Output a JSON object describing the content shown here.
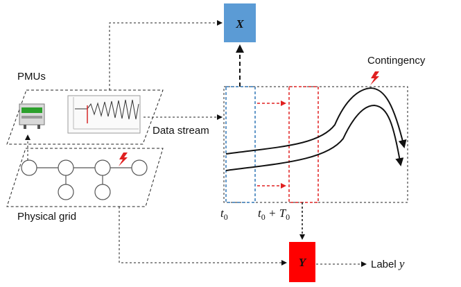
{
  "labels": {
    "pmus": "PMUs",
    "physical_grid": "Physical grid",
    "data_stream": "Data stream",
    "contingency": "Contingency",
    "label_y_prefix": "Label ",
    "label_y_var": "y",
    "t0_main": "t",
    "t0_sub": "0",
    "t0T0_main": "t",
    "t0T0_sub": "0",
    "t0T0_plus": " + T",
    "t0T0_sub2": "0"
  },
  "boxes": {
    "x_box": "X",
    "y_box": "Y"
  },
  "colors": {
    "x_box": "#5b9bd5",
    "y_box": "#ff0000",
    "blue_window": "#2e75b6",
    "red_window": "#e02020",
    "lightning": "#e02020"
  },
  "icons": {
    "pmu_device": "pmu-device-icon",
    "waveform": "waveform-plot-icon",
    "lightning": "lightning-bolt-icon"
  }
}
